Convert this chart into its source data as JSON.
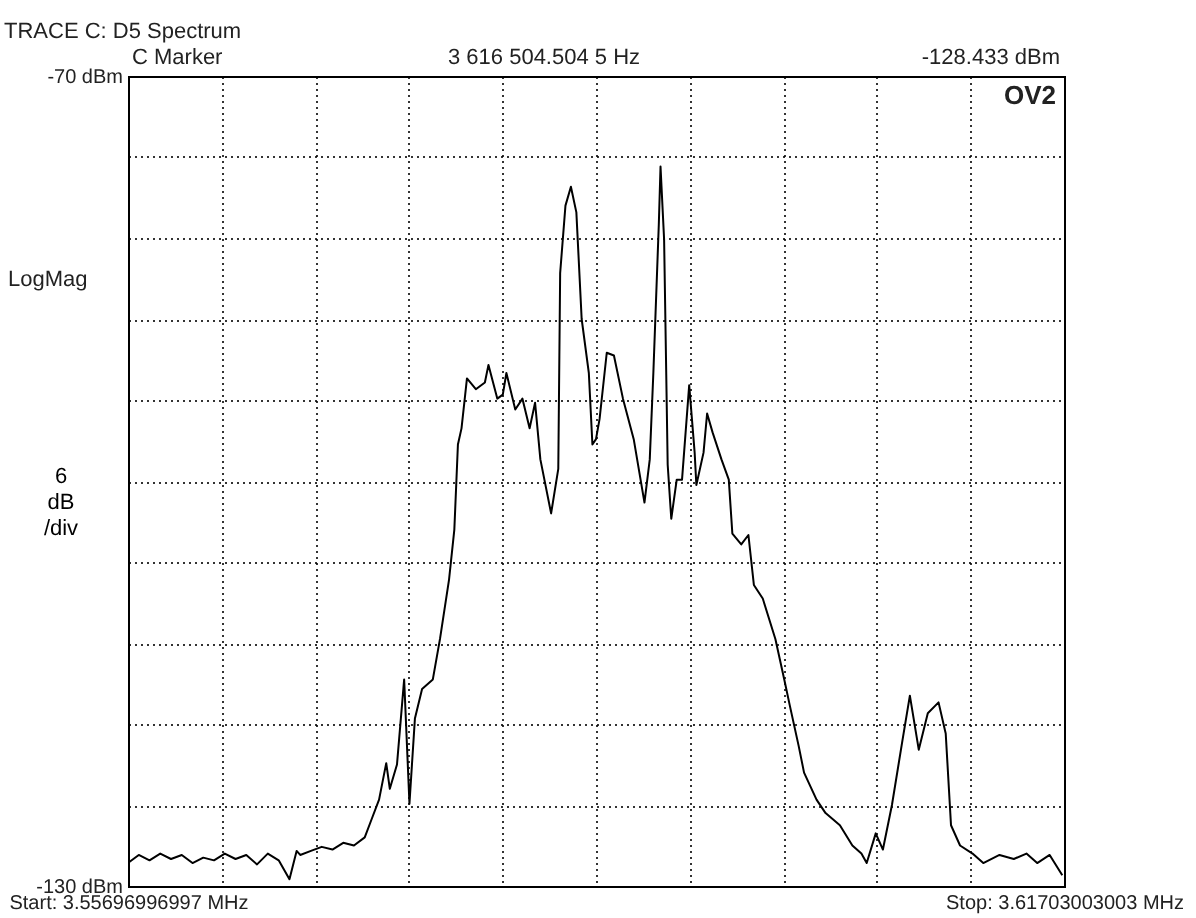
{
  "chart_data": {
    "type": "line",
    "title": "TRACE C: D5 Spectrum",
    "ylabel": "6 dB /div",
    "annotations": [
      "C Marker",
      "3 616 504.504 5 Hz",
      "-128.433 dBm",
      "OV2",
      "LogMag"
    ],
    "x": [
      3.55697,
      3.55766,
      3.55835,
      3.55904,
      3.55973,
      3.56042,
      3.56111,
      3.5618,
      3.56249,
      3.56318,
      3.56387,
      3.56456,
      3.56525,
      3.56594,
      3.56664,
      3.56733,
      3.56779,
      3.56802,
      3.56871,
      3.5694,
      3.57009,
      3.57078,
      3.57147,
      3.57216,
      3.57262,
      3.57308,
      3.57354,
      3.57377,
      3.57423,
      3.57469,
      3.57503,
      3.57538,
      3.57584,
      3.57653,
      3.57699,
      3.57757,
      3.57791,
      3.57814,
      3.57837,
      3.57872,
      3.57929,
      3.57987,
      3.5801,
      3.58067,
      3.58102,
      3.58125,
      3.58182,
      3.58228,
      3.58274,
      3.58309,
      3.58343,
      3.58412,
      3.58458,
      3.5847,
      3.58504,
      3.58539,
      3.58574,
      3.58608,
      3.58654,
      3.58677,
      3.587,
      3.58723,
      3.58769,
      3.58815,
      3.58873,
      3.58942,
      3.59011,
      3.59045,
      3.59068,
      3.59103,
      3.59114,
      3.59137,
      3.5916,
      3.59183,
      3.59218,
      3.59252,
      3.59298,
      3.59333,
      3.59344,
      3.5939,
      3.59413,
      3.59448,
      3.59505,
      3.59552,
      3.59575,
      3.59632,
      3.59678,
      3.59713,
      3.5977,
      3.59851,
      3.59908,
      3.59943,
      3.6,
      3.60035,
      3.60115,
      3.60173,
      3.60265,
      3.60345,
      3.60403,
      3.60437,
      3.60495,
      3.60541,
      3.60599,
      3.60668,
      3.60714,
      3.60771,
      3.60829,
      3.60898,
      3.60944,
      3.60978,
      3.61036,
      3.61116,
      3.61185,
      3.61289,
      3.61381,
      3.61462,
      3.61531,
      3.61611,
      3.61692
    ],
    "series": [
      {
        "color": "#000000",
        "values": [
          -128.3,
          -127.7,
          -128.1,
          -127.6,
          -128.0,
          -127.7,
          -128.3,
          -127.9,
          -128.1,
          -127.6,
          -128.0,
          -127.7,
          -128.4,
          -127.6,
          -128.1,
          -129.5,
          -127.4,
          -127.7,
          -127.4,
          -127.1,
          -127.3,
          -126.8,
          -127.0,
          -126.4,
          -125.0,
          -123.6,
          -120.9,
          -122.8,
          -121.0,
          -114.7,
          -123.9,
          -117.6,
          -115.4,
          -114.7,
          -111.7,
          -107.3,
          -103.6,
          -97.3,
          -96.1,
          -92.4,
          -93.2,
          -92.7,
          -91.4,
          -93.9,
          -93.6,
          -92.0,
          -94.7,
          -93.9,
          -96.1,
          -94.2,
          -98.4,
          -102.4,
          -99.1,
          -84.6,
          -79.6,
          -78.2,
          -80.1,
          -88.0,
          -92.0,
          -97.3,
          -96.9,
          -95.4,
          -90.5,
          -90.7,
          -93.9,
          -96.9,
          -101.6,
          -98.4,
          -92.0,
          -81.0,
          -76.7,
          -82.1,
          -98.8,
          -102.8,
          -99.9,
          -99.9,
          -92.9,
          -97.9,
          -100.3,
          -97.9,
          -95.0,
          -96.4,
          -98.4,
          -99.9,
          -103.9,
          -104.7,
          -104.0,
          -107.7,
          -108.7,
          -111.7,
          -114.7,
          -116.6,
          -119.6,
          -121.6,
          -123.6,
          -124.6,
          -125.5,
          -127.0,
          -127.6,
          -128.3,
          -126.1,
          -127.3,
          -124.0,
          -119.1,
          -115.9,
          -119.9,
          -117.2,
          -116.4,
          -118.7,
          -125.5,
          -127.0,
          -127.6,
          -128.3,
          -127.7,
          -128.0,
          -127.6,
          -128.3,
          -127.7,
          -129.2
        ]
      }
    ],
    "xlim": [
      3.55696996997,
      3.61703003003
    ],
    "xticks": [
      {
        "value": 3.55696996997,
        "label": "Start: 3.55696996997 MHz"
      },
      {
        "value": 3.56297597598,
        "label": null
      },
      {
        "value": 3.56898198198,
        "label": null
      },
      {
        "value": 3.57498798799,
        "label": null
      },
      {
        "value": 3.58099399399,
        "label": null
      },
      {
        "value": 3.587,
        "label": null
      },
      {
        "value": 3.59300600601,
        "label": null
      },
      {
        "value": 3.59901201201,
        "label": null
      },
      {
        "value": 3.60501801802,
        "label": null
      },
      {
        "value": 3.61102402402,
        "label": null
      },
      {
        "value": 3.61703003003,
        "label": "Stop: 3.61703003003 MHz"
      }
    ],
    "ylim": [
      -130,
      -70
    ],
    "yticks": [
      {
        "value": -70,
        "label": "-70 dBm"
      },
      {
        "value": -76,
        "label": null
      },
      {
        "value": -82,
        "label": null
      },
      {
        "value": -88,
        "label": null
      },
      {
        "value": -94,
        "label": null
      },
      {
        "value": -100,
        "label": null
      },
      {
        "value": -106,
        "label": null
      },
      {
        "value": -112,
        "label": null
      },
      {
        "value": -118,
        "label": null
      },
      {
        "value": -124,
        "label": null
      },
      {
        "value": -130,
        "label": "-130 dBm"
      }
    ],
    "grid": true,
    "line_style": "solid",
    "marker": "none"
  }
}
